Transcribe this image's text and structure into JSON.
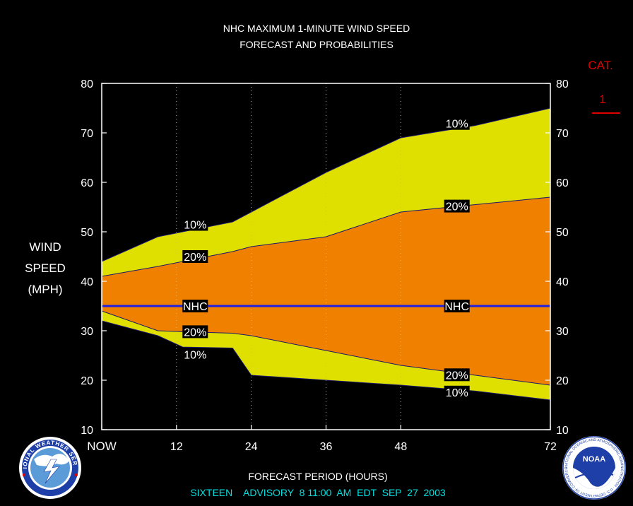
{
  "chart_data": {
    "type": "area",
    "title": "NHC MAXIMUM 1-MINUTE WIND SPEED",
    "subtitle": "FORECAST AND PROBABILITIES",
    "xlabel": "FORECAST PERIOD (HOURS)",
    "ylabel_lines": [
      "WIND",
      "SPEED",
      "(MPH)"
    ],
    "advisory": "SIXTEEN    ADVISORY  8 11:00  AM  EDT  SEP  27  2003",
    "xlim": [
      0,
      72
    ],
    "ylim": [
      10,
      80
    ],
    "y_ticks": [
      10,
      20,
      30,
      40,
      50,
      60,
      70,
      80
    ],
    "x_ticks": [
      {
        "value": 0,
        "label": "NOW"
      },
      {
        "value": 12,
        "label": "12"
      },
      {
        "value": 24,
        "label": "24"
      },
      {
        "value": 36,
        "label": "36"
      },
      {
        "value": 48,
        "label": "48"
      },
      {
        "value": 72,
        "label": "72"
      }
    ],
    "series": [
      {
        "name": "10%",
        "x": [
          0,
          9,
          21,
          24,
          36,
          48,
          60,
          72
        ],
        "values": [
          44,
          49,
          52,
          54,
          62,
          69,
          71.5,
          75
        ]
      },
      {
        "name": "20%",
        "x": [
          0,
          9,
          21,
          24,
          36,
          48,
          60,
          72
        ],
        "values": [
          41,
          43,
          46,
          47,
          49,
          54,
          55.5,
          57
        ]
      },
      {
        "name": "NHC",
        "x": [
          0,
          72
        ],
        "values": [
          35,
          35
        ]
      },
      {
        "name": "20%",
        "x": [
          0,
          9,
          13,
          21,
          24,
          36,
          48,
          60,
          72
        ],
        "values": [
          34,
          30,
          29.8,
          29.5,
          29,
          26,
          23,
          21,
          19
        ]
      },
      {
        "name": "10%",
        "x": [
          0,
          9,
          13,
          21,
          24,
          36,
          48,
          60,
          72
        ],
        "values": [
          32,
          29,
          26.7,
          26.5,
          21,
          20,
          19,
          17.8,
          16
        ]
      }
    ],
    "labels": [
      {
        "text": "10%",
        "x": 15,
        "y": 51.5
      },
      {
        "text": "20%",
        "x": 15,
        "y": 45
      },
      {
        "text": "NHC",
        "x": 15,
        "y": 35
      },
      {
        "text": "20%",
        "x": 15,
        "y": 29.8
      },
      {
        "text": "10%",
        "x": 15,
        "y": 25.2
      },
      {
        "text": "10%",
        "x": 57,
        "y": 71.9
      },
      {
        "text": "20%",
        "x": 57,
        "y": 55.2
      },
      {
        "text": "NHC",
        "x": 57,
        "y": 35
      },
      {
        "text": "20%",
        "x": 57,
        "y": 21.1
      },
      {
        "text": "10%",
        "x": 57,
        "y": 17.6
      }
    ],
    "category": {
      "label": "CAT.",
      "value": "1"
    },
    "logos": {
      "left": "NATIONAL WEATHER SERVICE",
      "right": "NATIONAL OCEANIC AND ATMOSPHERIC ADMINISTRATION · U.S. DEPARTMENT OF COMMERCE",
      "right_center": "NOAA"
    },
    "colors": {
      "outer_band": "#e0e000",
      "inner_band": "#f08000",
      "nhc_line": "#2020e0",
      "category": "#e00000",
      "advisory_text": "#00e0e0"
    }
  }
}
